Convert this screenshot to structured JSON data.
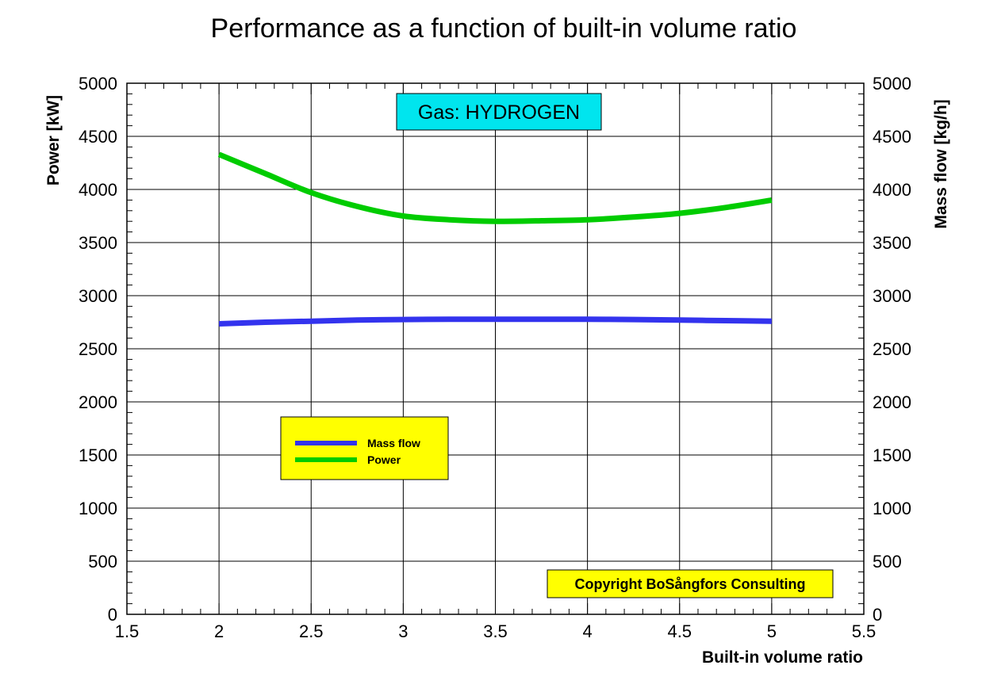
{
  "chart_data": {
    "type": "line",
    "title": "Performance as a function of built-in volume ratio",
    "xlabel": "Built-in volume ratio",
    "ylabel": "Power [kW]",
    "y2label": "Mass flow [kg/h]",
    "xlim": [
      1.5,
      5.5
    ],
    "ylim": [
      0,
      5000
    ],
    "y2lim": [
      0,
      5000
    ],
    "x_ticks": [
      "1.5",
      "2",
      "2.5",
      "3",
      "3.5",
      "4",
      "4.5",
      "5",
      "5.5"
    ],
    "y_ticks": [
      "0",
      "500",
      "1000",
      "1500",
      "2000",
      "2500",
      "3000",
      "3500",
      "4000",
      "4500",
      "5000"
    ],
    "y2_ticks": [
      "0",
      "500",
      "1000",
      "1500",
      "2000",
      "2500",
      "3000",
      "3500",
      "4000",
      "4500",
      "5000"
    ],
    "grid": true,
    "legend_position": "left-middle",
    "series": [
      {
        "name": "Mass flow",
        "axis": "right",
        "color": "#3333ee",
        "x": [
          2.0,
          2.25,
          2.5,
          2.75,
          3.0,
          3.25,
          3.5,
          3.75,
          4.0,
          4.25,
          4.5,
          4.75,
          5.0
        ],
        "values": [
          2735,
          2750,
          2760,
          2770,
          2775,
          2778,
          2778,
          2778,
          2778,
          2775,
          2770,
          2765,
          2760
        ]
      },
      {
        "name": "Power",
        "axis": "left",
        "color": "#00cc00",
        "x": [
          2.0,
          2.25,
          2.5,
          2.75,
          3.0,
          3.25,
          3.5,
          3.75,
          4.0,
          4.25,
          4.5,
          4.75,
          5.0
        ],
        "values": [
          4330,
          4150,
          3970,
          3840,
          3750,
          3715,
          3700,
          3705,
          3715,
          3740,
          3775,
          3830,
          3900
        ]
      }
    ],
    "annotations": {
      "gas": "Gas: HYDROGEN",
      "copyright": "Copyright BoSångfors Consulting"
    },
    "colors": {
      "gas_box": "#00e5ee",
      "legend_box": "#ffff00",
      "copyright_box": "#ffff00"
    }
  }
}
